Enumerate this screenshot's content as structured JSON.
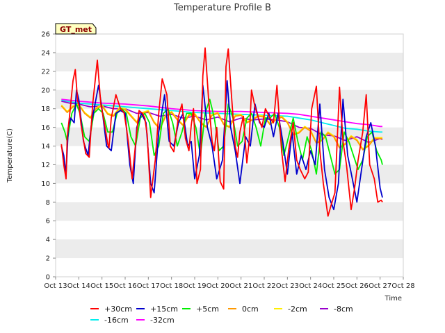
{
  "chart_data": {
    "type": "line",
    "title": "Temperature Profile B",
    "xlabel": "Time",
    "ylabel": "Temperature(C)",
    "badge": "GT_met",
    "ylim": [
      0,
      26
    ],
    "yticks": [
      0,
      2,
      4,
      6,
      8,
      10,
      12,
      14,
      16,
      18,
      20,
      22,
      24,
      26
    ],
    "xlim": [
      13,
      28
    ],
    "xticks": [
      13,
      14,
      15,
      16,
      17,
      18,
      19,
      20,
      21,
      22,
      23,
      24,
      25,
      26,
      27,
      28
    ],
    "xtick_labels": [
      "Oct 13",
      "Oct 14",
      "Oct 15",
      "Oct 16",
      "Oct 17",
      "Oct 18",
      "Oct 19",
      "Oct 20",
      "Oct 21",
      "Oct 22",
      "Oct 23",
      "Oct 24",
      "Oct 25",
      "Oct 26",
      "Oct 27",
      "Oct 28"
    ],
    "grid_bands": true,
    "legend_position": "bottom",
    "series": [
      {
        "name": "+30cm",
        "color": "#ff0000",
        "x": [
          13.25,
          13.35,
          13.45,
          13.5,
          13.6,
          13.75,
          13.85,
          13.95,
          14.0,
          14.1,
          14.3,
          14.45,
          14.6,
          14.8,
          14.95,
          15.1,
          15.25,
          15.3,
          15.4,
          15.5,
          15.6,
          15.8,
          15.95,
          16.05,
          16.15,
          16.3,
          16.5,
          16.6,
          16.75,
          16.85,
          16.95,
          17.1,
          17.3,
          17.45,
          17.6,
          17.8,
          17.95,
          18.1,
          18.3,
          18.45,
          18.6,
          18.75,
          18.85,
          18.95,
          19.1,
          19.25,
          19.35,
          19.45,
          19.6,
          19.75,
          19.85,
          19.95,
          20.1,
          20.25,
          20.35,
          20.45,
          20.6,
          20.75,
          20.85,
          20.95,
          21.1,
          21.25,
          21.35,
          21.45,
          21.6,
          21.75,
          21.9,
          22.05,
          22.25,
          22.4,
          22.55,
          22.75,
          22.9,
          23.05,
          23.25,
          23.4,
          23.55,
          23.75,
          23.9,
          24.05,
          24.25,
          24.4,
          24.55,
          24.75,
          24.9,
          25.05,
          25.25,
          25.4,
          25.55,
          25.75,
          25.9,
          26.05,
          26.25,
          26.4,
          26.55,
          26.75,
          26.9,
          27.05,
          27.1
        ],
        "y": [
          14.2,
          12.0,
          10.5,
          15.0,
          17.2,
          21.0,
          22.2,
          18.8,
          18.5,
          16.2,
          13.2,
          12.8,
          18.5,
          23.2,
          18.5,
          16.5,
          14.2,
          13.8,
          17.0,
          18.2,
          19.5,
          18.0,
          17.6,
          16.0,
          14.2,
          10.5,
          15.5,
          17.8,
          17.5,
          17.0,
          15.2,
          8.5,
          12.5,
          17.5,
          21.2,
          19.5,
          14.0,
          13.4,
          17.2,
          18.5,
          14.8,
          13.5,
          16.2,
          18.0,
          10.0,
          11.5,
          21.5,
          24.5,
          19.0,
          14.5,
          13.5,
          16.0,
          10.2,
          9.4,
          22.5,
          24.4,
          19.0,
          14.0,
          12.8,
          15.5,
          17.2,
          12.2,
          14.5,
          20.0,
          18.2,
          17.0,
          16.0,
          18.0,
          17.0,
          16.5,
          20.5,
          13.5,
          10.2,
          13.5,
          16.5,
          12.5,
          11.5,
          10.5,
          11.2,
          18.0,
          20.4,
          13.5,
          10.0,
          6.5,
          7.8,
          9.0,
          20.3,
          14.5,
          12.0,
          7.2,
          9.5,
          12.5,
          15.5,
          19.5,
          12.0,
          10.5,
          8.0,
          8.2,
          8.0
        ]
      },
      {
        "name": "+15cm",
        "color": "#0000cc",
        "x": [
          13.25,
          13.35,
          13.45,
          13.55,
          13.65,
          13.8,
          13.9,
          14.0,
          14.2,
          14.4,
          14.55,
          14.7,
          14.85,
          15.0,
          15.2,
          15.4,
          15.6,
          15.8,
          16.0,
          16.2,
          16.35,
          16.5,
          16.7,
          16.9,
          17.1,
          17.25,
          17.45,
          17.7,
          17.9,
          18.1,
          18.3,
          18.5,
          18.7,
          18.85,
          19.0,
          19.2,
          19.35,
          19.55,
          19.75,
          19.95,
          20.2,
          20.4,
          20.55,
          20.75,
          20.95,
          21.2,
          21.4,
          21.6,
          21.8,
          22.0,
          22.2,
          22.4,
          22.6,
          22.8,
          23.0,
          23.2,
          23.4,
          23.6,
          23.8,
          24.0,
          24.2,
          24.4,
          24.6,
          24.8,
          25.0,
          25.2,
          25.4,
          25.6,
          25.8,
          26.0,
          26.2,
          26.4,
          26.6,
          26.8,
          27.0,
          27.1
        ],
        "y": [
          14.0,
          13.0,
          11.0,
          16.0,
          17.0,
          16.5,
          20.0,
          19.0,
          14.5,
          13.0,
          16.5,
          18.5,
          20.5,
          18.0,
          14.0,
          13.5,
          17.5,
          17.8,
          17.5,
          12.0,
          10.0,
          16.0,
          17.5,
          16.5,
          10.0,
          9.0,
          15.5,
          19.5,
          14.5,
          14.0,
          16.5,
          17.5,
          14.0,
          14.5,
          10.5,
          13.0,
          20.5,
          16.0,
          14.0,
          10.5,
          12.5,
          21.0,
          16.0,
          13.5,
          10.0,
          15.0,
          14.0,
          18.5,
          16.5,
          16.0,
          17.5,
          15.0,
          17.5,
          14.5,
          11.0,
          15.5,
          11.0,
          13.0,
          11.5,
          13.5,
          12.0,
          18.5,
          11.5,
          8.5,
          7.2,
          10.0,
          19.0,
          13.0,
          10.5,
          8.0,
          11.5,
          15.0,
          16.5,
          14.0,
          9.5,
          8.5
        ]
      },
      {
        "name": "+5cm",
        "color": "#00ee00",
        "x": [
          13.25,
          13.4,
          13.5,
          13.7,
          13.9,
          14.05,
          14.25,
          14.45,
          14.65,
          14.85,
          15.05,
          15.25,
          15.45,
          15.65,
          15.85,
          16.05,
          16.25,
          16.45,
          16.65,
          16.85,
          17.05,
          17.25,
          17.45,
          17.65,
          17.85,
          18.05,
          18.25,
          18.45,
          18.65,
          18.85,
          19.05,
          19.25,
          19.45,
          19.65,
          19.85,
          20.05,
          20.25,
          20.45,
          20.65,
          20.85,
          21.05,
          21.25,
          21.45,
          21.65,
          21.85,
          22.05,
          22.25,
          22.45,
          22.65,
          22.85,
          23.05,
          23.25,
          23.45,
          23.65,
          23.85,
          24.05,
          24.25,
          24.45,
          24.65,
          24.85,
          25.05,
          25.25,
          25.45,
          25.65,
          25.85,
          26.05,
          26.25,
          26.45,
          26.65,
          26.85,
          27.05,
          27.1
        ],
        "y": [
          16.5,
          15.5,
          14.5,
          17.5,
          18.5,
          17.5,
          15.0,
          14.5,
          17.5,
          18.0,
          17.5,
          15.5,
          15.5,
          17.5,
          18.0,
          17.5,
          15.0,
          14.0,
          17.0,
          17.5,
          16.5,
          13.0,
          14.0,
          17.5,
          18.0,
          16.5,
          14.0,
          15.5,
          17.5,
          17.5,
          16.0,
          13.0,
          17.5,
          19.0,
          17.0,
          13.5,
          14.0,
          18.5,
          17.0,
          14.0,
          14.5,
          17.0,
          17.5,
          16.0,
          14.0,
          17.0,
          17.0,
          17.5,
          16.0,
          13.0,
          15.0,
          17.0,
          14.5,
          12.5,
          15.0,
          13.5,
          11.0,
          15.5,
          15.0,
          13.0,
          11.0,
          11.5,
          15.5,
          14.5,
          13.0,
          11.5,
          12.5,
          15.0,
          15.5,
          13.5,
          12.5,
          12.0
        ]
      },
      {
        "name": "0cm",
        "color": "#ff9900",
        "x": [
          13.25,
          13.5,
          13.75,
          14.0,
          14.25,
          14.5,
          14.75,
          15.0,
          15.25,
          15.5,
          15.75,
          16.0,
          16.25,
          16.5,
          16.75,
          17.0,
          17.25,
          17.5,
          17.75,
          18.0,
          18.25,
          18.5,
          18.75,
          19.0,
          19.25,
          19.5,
          19.75,
          20.0,
          20.25,
          20.5,
          20.75,
          21.0,
          21.25,
          21.5,
          21.75,
          22.0,
          22.25,
          22.5,
          22.75,
          23.0,
          23.25,
          23.5,
          23.75,
          24.0,
          24.25,
          24.5,
          24.75,
          25.0,
          25.25,
          25.5,
          25.75,
          26.0,
          26.25,
          26.5,
          26.75,
          27.0,
          27.1
        ],
        "y": [
          18.3,
          17.6,
          18.2,
          18.4,
          17.5,
          17.0,
          18.0,
          18.3,
          17.4,
          17.2,
          18.0,
          17.9,
          17.2,
          16.5,
          17.5,
          17.7,
          16.5,
          15.8,
          17.2,
          17.6,
          16.8,
          16.2,
          17.3,
          17.4,
          16.5,
          16.0,
          17.3,
          17.5,
          16.3,
          16.0,
          17.2,
          17.3,
          16.5,
          16.8,
          17.2,
          17.1,
          16.3,
          16.8,
          17.1,
          16.5,
          15.2,
          15.4,
          16.0,
          15.6,
          14.3,
          14.6,
          15.4,
          15.0,
          13.8,
          14.2,
          15.0,
          14.6,
          13.6,
          14.0,
          14.8,
          14.8,
          14.8
        ]
      },
      {
        "name": "-2cm",
        "color": "#ffee00",
        "x": [
          13.25,
          13.5,
          13.75,
          14.0,
          14.25,
          14.5,
          14.75,
          15.0,
          15.25,
          15.5,
          15.75,
          16.0,
          16.25,
          16.5,
          16.75,
          17.0,
          17.25,
          17.5,
          17.75,
          18.0,
          18.25,
          18.5,
          18.75,
          19.0,
          19.25,
          19.5,
          19.75,
          20.0,
          20.25,
          20.5,
          20.75,
          21.0,
          21.25,
          21.5,
          21.75,
          22.0,
          22.25,
          22.5,
          22.75,
          23.0,
          23.25,
          23.5,
          23.75,
          24.0,
          24.25,
          24.5,
          24.75,
          25.0,
          25.25,
          25.5,
          25.75,
          26.0,
          26.25,
          26.5,
          26.75,
          27.0,
          27.1
        ],
        "y": [
          18.4,
          17.7,
          18.3,
          18.5,
          17.6,
          17.1,
          18.1,
          18.4,
          17.5,
          17.3,
          18.1,
          18.0,
          17.3,
          16.6,
          17.6,
          17.8,
          16.6,
          15.9,
          17.3,
          17.7,
          16.9,
          16.3,
          17.4,
          17.5,
          16.6,
          16.1,
          17.4,
          17.6,
          16.4,
          16.1,
          17.3,
          17.4,
          16.6,
          16.9,
          17.3,
          17.2,
          16.4,
          16.9,
          17.2,
          16.6,
          15.3,
          15.5,
          16.1,
          15.7,
          14.4,
          14.7,
          15.5,
          15.1,
          13.9,
          14.3,
          15.1,
          14.7,
          13.7,
          14.1,
          14.9,
          14.9,
          14.9
        ]
      },
      {
        "name": "-8cm",
        "color": "#9900cc",
        "x": [
          13.25,
          13.6,
          14.0,
          14.5,
          15.0,
          15.5,
          16.0,
          16.5,
          17.0,
          17.5,
          18.0,
          18.5,
          19.0,
          19.5,
          20.0,
          20.5,
          21.0,
          21.5,
          22.0,
          22.5,
          23.0,
          23.5,
          24.0,
          24.5,
          25.0,
          25.5,
          26.0,
          26.5,
          27.0,
          27.1
        ],
        "y": [
          18.8,
          18.6,
          18.5,
          18.2,
          18.3,
          18.0,
          18.0,
          17.5,
          17.6,
          17.2,
          17.4,
          17.0,
          17.2,
          16.8,
          17.1,
          16.6,
          17.0,
          16.8,
          16.9,
          16.8,
          16.6,
          16.0,
          15.9,
          15.2,
          15.1,
          14.6,
          15.0,
          14.4,
          14.8,
          14.7
        ]
      },
      {
        "name": "-16cm",
        "color": "#00eeee",
        "x": [
          13.25,
          14.0,
          15.0,
          16.0,
          17.0,
          18.0,
          19.0,
          20.0,
          21.0,
          22.0,
          23.0,
          23.5,
          24.0,
          24.5,
          25.0,
          25.5,
          26.0,
          26.5,
          27.0,
          27.1
        ],
        "y": [
          18.9,
          18.6,
          18.4,
          18.2,
          18.0,
          17.8,
          17.6,
          17.5,
          17.4,
          17.3,
          17.2,
          17.0,
          16.8,
          16.5,
          16.2,
          15.9,
          15.8,
          15.6,
          15.5,
          15.5
        ]
      },
      {
        "name": "-32cm",
        "color": "#ff00ff",
        "x": [
          13.25,
          14.0,
          15.0,
          16.0,
          17.0,
          18.0,
          19.0,
          20.0,
          21.0,
          22.0,
          23.0,
          23.5,
          24.0,
          24.5,
          25.0,
          25.5,
          26.0,
          26.5,
          27.0,
          27.1
        ],
        "y": [
          19.0,
          18.8,
          18.6,
          18.5,
          18.3,
          18.0,
          17.8,
          17.7,
          17.7,
          17.6,
          17.5,
          17.4,
          17.2,
          17.0,
          16.8,
          16.6,
          16.4,
          16.3,
          16.1,
          16.1
        ]
      }
    ]
  }
}
